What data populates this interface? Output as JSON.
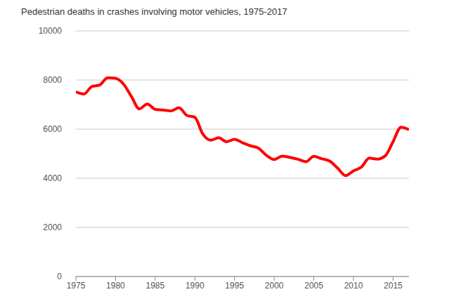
{
  "chart_data": {
    "type": "line",
    "title": "Pedestrian deaths in crashes involving motor vehicles, 1975-2017",
    "x": [
      1975,
      1976,
      1977,
      1978,
      1979,
      1980,
      1981,
      1982,
      1983,
      1984,
      1985,
      1986,
      1987,
      1988,
      1989,
      1990,
      1991,
      1992,
      1993,
      1994,
      1995,
      1996,
      1997,
      1998,
      1999,
      2000,
      2001,
      2002,
      2003,
      2004,
      2005,
      2006,
      2007,
      2008,
      2009,
      2010,
      2011,
      2012,
      2013,
      2014,
      2015,
      2016,
      2017
    ],
    "values": [
      7516,
      7427,
      7732,
      7795,
      8096,
      8070,
      7837,
      7331,
      6826,
      7025,
      6808,
      6779,
      6745,
      6870,
      6556,
      6482,
      5801,
      5549,
      5649,
      5489,
      5584,
      5449,
      5321,
      5228,
      4939,
      4763,
      4901,
      4851,
      4774,
      4675,
      4892,
      4795,
      4699,
      4414,
      4109,
      4302,
      4457,
      4818,
      4779,
      4910,
      5494,
      6080,
      5977
    ],
    "color": "#ff0000",
    "xlim": [
      1975,
      2017
    ],
    "xticks": [
      1975,
      1980,
      1985,
      1990,
      1995,
      2000,
      2005,
      2010,
      2015
    ],
    "ylim": [
      0,
      10000
    ],
    "yticks": [
      0,
      2000,
      4000,
      6000,
      8000,
      10000
    ],
    "grid": true
  }
}
